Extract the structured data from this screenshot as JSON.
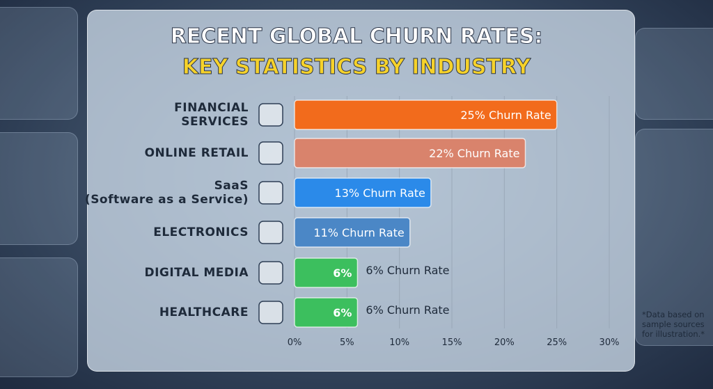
{
  "chart_data": {
    "type": "bar",
    "orientation": "horizontal",
    "title": "RECENT GLOBAL CHURN RATES:",
    "subtitle": "KEY STATISTICS BY INDUSTRY",
    "categories": [
      "FINANCIAL\nSERVICES",
      "ONLINE RETAIL",
      "SaaS\n(Software as a Service)",
      "ELECTRONICS",
      "DIGITAL MEDIA",
      "HEALTHCARE"
    ],
    "values": [
      25,
      22,
      13,
      11,
      6,
      6
    ],
    "value_labels": [
      "25% Churn Rate",
      "22% Churn Rate",
      "13% Churn Rate",
      "11% Churn Rate",
      "6% Churn Rate",
      "6% Churn Rate"
    ],
    "inner_labels": [
      null,
      null,
      null,
      null,
      "6%",
      "6%"
    ],
    "colors": [
      "#f26b1c",
      "#d9836c",
      "#2b8ae9",
      "#4b87c6",
      "#3cbf5e",
      "#3cbf5e"
    ],
    "xlim": [
      0,
      30
    ],
    "xticks": [
      {
        "value": 0,
        "label": "0%"
      },
      {
        "value": 5,
        "label": "5%"
      },
      {
        "value": 10,
        "label": "10%"
      },
      {
        "value": 15,
        "label": "15%"
      },
      {
        "value": 20,
        "label": "20%"
      },
      {
        "value": 25,
        "label": "25%"
      },
      {
        "value": 30,
        "label": "30%"
      }
    ],
    "grid": true,
    "footnote": "*Data based on sample sources for illustration.*"
  }
}
